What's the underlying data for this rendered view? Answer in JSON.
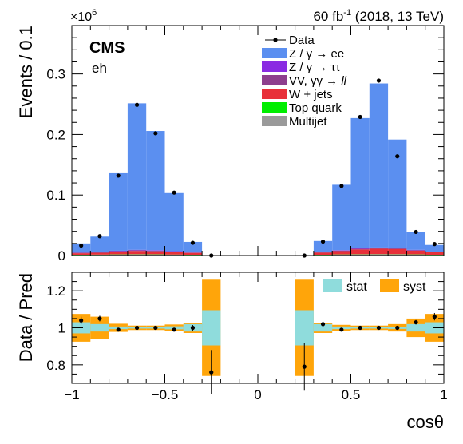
{
  "header": {
    "lumi_text": "60 fb",
    "lumi_sup": "-1",
    "lumi_suffix": " (2018, 13 TeV)",
    "experiment": "CMS",
    "channel": "eh",
    "multiplier_base": "×10",
    "multiplier_exp": "6"
  },
  "chart_data": [
    {
      "type": "bar",
      "panel": "main",
      "stacked": true,
      "bin_edges": [
        -1.0,
        -0.9,
        -0.8,
        -0.7,
        -0.6,
        -0.5,
        -0.4,
        -0.3,
        -0.2,
        -0.1,
        0.0,
        0.1,
        0.2,
        0.3,
        0.4,
        0.5,
        0.6,
        0.7,
        0.8,
        0.9,
        1.0
      ],
      "xlabel": "cosθ",
      "ylabel": "Events / 0.1",
      "ylim": [
        0,
        0.38
      ],
      "y_ticks": [
        0,
        0.1,
        0.2,
        0.3
      ],
      "y_tick_labels": [
        "0",
        "0.1",
        "0.2",
        "0.3"
      ],
      "y_multiplier": "1e6",
      "series": [
        {
          "name": "Multijet",
          "legend_label": "Multijet",
          "color": "#9a9a9a",
          "values": [
            0.001,
            0.0012,
            0.0015,
            0.0017,
            0.0016,
            0.0013,
            0.001,
            0,
            0,
            0,
            0,
            0,
            0,
            0.001,
            0.0014,
            0.0017,
            0.0019,
            0.0018,
            0.0015,
            0.001
          ]
        },
        {
          "name": "Top quark",
          "legend_label": "Top quark",
          "color": "#00ee00",
          "values": [
            0.0003,
            0.0003,
            0.0004,
            0.0004,
            0.0004,
            0.0003,
            0.0003,
            0,
            0,
            0,
            0,
            0,
            0,
            0.0003,
            0.0004,
            0.0004,
            0.0004,
            0.0004,
            0.0004,
            0.0003
          ]
        },
        {
          "name": "W + jets",
          "legend_label": "W + jets",
          "color": "#e8303a",
          "values": [
            0.0025,
            0.003,
            0.0045,
            0.0055,
            0.005,
            0.004,
            0.003,
            0,
            0,
            0,
            0,
            0,
            0,
            0.0035,
            0.0055,
            0.008,
            0.009,
            0.0085,
            0.006,
            0.004
          ]
        },
        {
          "name": "VV, γγ → ll",
          "legend_label": "VV, γγ → ",
          "legend_italic": "ll",
          "color": "#8e3f8e",
          "values": [
            0.0008,
            0.0009,
            0.001,
            0.0012,
            0.0011,
            0.001,
            0.0008,
            0,
            0,
            0,
            0,
            0,
            0,
            0.0008,
            0.001,
            0.0012,
            0.0012,
            0.0012,
            0.001,
            0.0008
          ]
        },
        {
          "name": "Z / γ → ττ",
          "legend_label": "Z / γ → ττ",
          "color": "#8a2be2",
          "values": [
            0.0004,
            0.0004,
            0.0006,
            0.0007,
            0.0007,
            0.0006,
            0.0004,
            0,
            0,
            0,
            0,
            0,
            0,
            0.0004,
            0.0006,
            0.0008,
            0.0008,
            0.0008,
            0.0006,
            0.0004
          ]
        },
        {
          "name": "Z / γ → ee",
          "legend_label": "Z / γ → ee",
          "color": "#5b8ff0",
          "values": [
            0.015,
            0.0255,
            0.128,
            0.242,
            0.197,
            0.096,
            0.017,
            0,
            0,
            0,
            0,
            0,
            0,
            0.018,
            0.108,
            0.215,
            0.271,
            0.179,
            0.03,
            0.011
          ]
        }
      ],
      "data": {
        "name": "Data",
        "legend_label": "Data",
        "x": [
          -0.95,
          -0.85,
          -0.75,
          -0.65,
          -0.55,
          -0.45,
          -0.35,
          -0.25,
          0.25,
          0.35,
          0.45,
          0.55,
          0.65,
          0.75,
          0.85,
          0.95
        ],
        "y": [
          0.0165,
          0.032,
          0.132,
          0.249,
          0.202,
          0.104,
          0.021,
          0.0,
          0.0,
          0.023,
          0.115,
          0.229,
          0.289,
          0.164,
          0.039,
          0.019
        ]
      }
    },
    {
      "type": "scatter",
      "panel": "ratio",
      "xlabel": "cosθ",
      "ylabel": "Data / Pred",
      "xlim": [
        -1,
        1
      ],
      "ylim": [
        0.7,
        1.3
      ],
      "x_ticks": [
        -1,
        -0.5,
        0,
        0.5,
        1
      ],
      "x_tick_labels": [
        "−1",
        "−0.5",
        "0",
        "0.5",
        "1"
      ],
      "y_ticks": [
        0.8,
        1.0,
        1.2
      ],
      "y_tick_labels": [
        "0.8",
        "1",
        "1.2"
      ],
      "legend": [
        {
          "name": "stat",
          "label": "stat",
          "color": "#8fdcdc"
        },
        {
          "name": "syst",
          "label": "syst",
          "color": "#ffa50a"
        }
      ],
      "bin_edges": [
        -1.0,
        -0.9,
        -0.8,
        -0.7,
        -0.6,
        -0.5,
        -0.4,
        -0.3,
        -0.2,
        -0.1,
        0.0,
        0.1,
        0.2,
        0.3,
        0.4,
        0.5,
        0.6,
        0.7,
        0.8,
        0.9,
        1.0
      ],
      "syst_half": [
        0.075,
        0.06,
        0.022,
        0.012,
        0.012,
        0.018,
        0.028,
        0.26,
        0,
        0,
        0,
        0,
        0.26,
        0.028,
        0.016,
        0.012,
        0.012,
        0.02,
        0.05,
        0.075
      ],
      "stat_half": [
        0.03,
        0.02,
        0.007,
        0.004,
        0.004,
        0.008,
        0.02,
        0.095,
        0,
        0,
        0,
        0,
        0.095,
        0.02,
        0.007,
        0.004,
        0.004,
        0.006,
        0.02,
        0.03
      ],
      "points": {
        "x": [
          -0.95,
          -0.85,
          -0.75,
          -0.65,
          -0.55,
          -0.45,
          -0.35,
          -0.25,
          0.25,
          0.35,
          0.45,
          0.55,
          0.65,
          0.75,
          0.85,
          0.95
        ],
        "y": [
          1.04,
          1.05,
          0.99,
          1.0,
          1.0,
          0.99,
          1.0,
          0.76,
          0.79,
          1.02,
          0.99,
          1.0,
          1.0,
          1.0,
          1.03,
          1.06
        ],
        "err": [
          0.02,
          0.015,
          0.005,
          0.004,
          0.004,
          0.006,
          0.015,
          0.12,
          0.13,
          0.015,
          0.006,
          0.004,
          0.004,
          0.005,
          0.012,
          0.02
        ]
      }
    }
  ]
}
